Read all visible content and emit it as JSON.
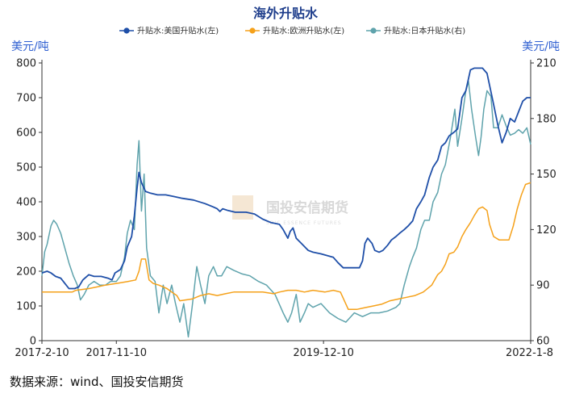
{
  "chart_data": {
    "type": "line",
    "title": "海外升贴水",
    "units": {
      "left": "美元/吨",
      "right": "美元/吨"
    },
    "y_left": {
      "min": 0,
      "max": 800,
      "ticks": [
        0,
        100,
        200,
        300,
        400,
        500,
        600,
        700,
        800
      ]
    },
    "y_right": {
      "min": 60,
      "max": 210,
      "ticks": [
        60,
        90,
        120,
        150,
        180,
        210
      ]
    },
    "x_axis": {
      "type": "date",
      "min": "2017-02-10",
      "max": "2022-01-08",
      "tick_labels": [
        "2017-2-10",
        "2017-11-10",
        "2019-12-10",
        "2022-1-8"
      ],
      "tick_dates": [
        "2017-02-10",
        "2017-11-10",
        "2019-12-10",
        "2022-01-08"
      ]
    },
    "legend_position": "top",
    "grid": false,
    "colors": {
      "us": "#1f4fa8",
      "eu": "#f5a11a",
      "jp": "#5fa3ac",
      "title": "#1f3e8c",
      "unit": "#2e5fd1"
    },
    "series": [
      {
        "name": "升贴水:美国升贴水(左)",
        "axis": "left",
        "key": "us",
        "points": [
          [
            "2017-02-10",
            195
          ],
          [
            "2017-03-01",
            200
          ],
          [
            "2017-03-15",
            195
          ],
          [
            "2017-04-01",
            185
          ],
          [
            "2017-04-20",
            180
          ],
          [
            "2017-05-05",
            165
          ],
          [
            "2017-05-20",
            150
          ],
          [
            "2017-06-10",
            150
          ],
          [
            "2017-06-25",
            155
          ],
          [
            "2017-07-10",
            175
          ],
          [
            "2017-08-01",
            190
          ],
          [
            "2017-08-20",
            185
          ],
          [
            "2017-09-15",
            185
          ],
          [
            "2017-10-10",
            180
          ],
          [
            "2017-10-25",
            175
          ],
          [
            "2017-11-05",
            195
          ],
          [
            "2017-11-15",
            200
          ],
          [
            "2017-11-25",
            205
          ],
          [
            "2017-12-10",
            230
          ],
          [
            "2017-12-20",
            270
          ],
          [
            "2018-01-05",
            300
          ],
          [
            "2018-01-15",
            360
          ],
          [
            "2018-01-25",
            440
          ],
          [
            "2018-02-01",
            485
          ],
          [
            "2018-02-10",
            455
          ],
          [
            "2018-02-25",
            430
          ],
          [
            "2018-03-15",
            425
          ],
          [
            "2018-04-10",
            420
          ],
          [
            "2018-05-10",
            420
          ],
          [
            "2018-06-10",
            415
          ],
          [
            "2018-07-10",
            410
          ],
          [
            "2018-08-20",
            405
          ],
          [
            "2018-10-01",
            395
          ],
          [
            "2018-11-01",
            385
          ],
          [
            "2018-11-15",
            380
          ],
          [
            "2018-11-25",
            372
          ],
          [
            "2018-12-05",
            380
          ],
          [
            "2018-12-25",
            375
          ],
          [
            "2019-01-20",
            370
          ],
          [
            "2019-03-01",
            370
          ],
          [
            "2019-04-01",
            365
          ],
          [
            "2019-05-01",
            350
          ],
          [
            "2019-06-01",
            340
          ],
          [
            "2019-07-01",
            335
          ],
          [
            "2019-07-15",
            320
          ],
          [
            "2019-08-01",
            295
          ],
          [
            "2019-08-10",
            315
          ],
          [
            "2019-08-20",
            325
          ],
          [
            "2019-09-01",
            295
          ],
          [
            "2019-09-20",
            280
          ],
          [
            "2019-10-15",
            260
          ],
          [
            "2019-11-01",
            255
          ],
          [
            "2019-12-01",
            250
          ],
          [
            "2020-01-15",
            240
          ],
          [
            "2020-02-01",
            225
          ],
          [
            "2020-02-20",
            210
          ],
          [
            "2020-03-20",
            210
          ],
          [
            "2020-04-20",
            210
          ],
          [
            "2020-05-01",
            230
          ],
          [
            "2020-05-10",
            280
          ],
          [
            "2020-05-20",
            295
          ],
          [
            "2020-06-05",
            280
          ],
          [
            "2020-06-15",
            260
          ],
          [
            "2020-07-01",
            255
          ],
          [
            "2020-07-15",
            260
          ],
          [
            "2020-08-01",
            275
          ],
          [
            "2020-08-15",
            290
          ],
          [
            "2020-09-01",
            300
          ],
          [
            "2020-09-15",
            310
          ],
          [
            "2020-10-01",
            320
          ],
          [
            "2020-10-15",
            330
          ],
          [
            "2020-11-01",
            345
          ],
          [
            "2020-11-15",
            380
          ],
          [
            "2020-12-01",
            400
          ],
          [
            "2020-12-15",
            420
          ],
          [
            "2021-01-01",
            470
          ],
          [
            "2021-01-15",
            500
          ],
          [
            "2021-02-01",
            520
          ],
          [
            "2021-02-15",
            560
          ],
          [
            "2021-03-01",
            570
          ],
          [
            "2021-03-15",
            590
          ],
          [
            "2021-04-01",
            600
          ],
          [
            "2021-04-15",
            610
          ],
          [
            "2021-05-01",
            700
          ],
          [
            "2021-05-15",
            720
          ],
          [
            "2021-06-01",
            780
          ],
          [
            "2021-06-15",
            785
          ],
          [
            "2021-07-15",
            785
          ],
          [
            "2021-08-01",
            770
          ],
          [
            "2021-08-20",
            700
          ],
          [
            "2021-09-10",
            620
          ],
          [
            "2021-09-25",
            570
          ],
          [
            "2021-10-10",
            600
          ],
          [
            "2021-10-25",
            640
          ],
          [
            "2021-11-10",
            630
          ],
          [
            "2021-11-25",
            660
          ],
          [
            "2021-12-10",
            690
          ],
          [
            "2021-12-25",
            700
          ],
          [
            "2022-01-08",
            700
          ]
        ]
      },
      {
        "name": "升贴水:欧洲升贴水(左)",
        "axis": "left",
        "key": "eu",
        "points": [
          [
            "2017-02-10",
            140
          ],
          [
            "2017-06-01",
            140
          ],
          [
            "2017-06-15",
            145
          ],
          [
            "2017-08-01",
            150
          ],
          [
            "2017-09-01",
            155
          ],
          [
            "2017-10-01",
            160
          ],
          [
            "2017-11-10",
            165
          ],
          [
            "2017-12-20",
            170
          ],
          [
            "2018-01-20",
            175
          ],
          [
            "2018-02-01",
            200
          ],
          [
            "2018-02-10",
            235
          ],
          [
            "2018-02-25",
            235
          ],
          [
            "2018-03-10",
            175
          ],
          [
            "2018-03-25",
            165
          ],
          [
            "2018-04-15",
            160
          ],
          [
            "2018-05-15",
            150
          ],
          [
            "2018-06-01",
            140
          ],
          [
            "2018-06-20",
            130
          ],
          [
            "2018-07-01",
            115
          ],
          [
            "2018-08-15",
            120
          ],
          [
            "2018-09-15",
            130
          ],
          [
            "2018-10-15",
            135
          ],
          [
            "2018-11-15",
            130
          ],
          [
            "2018-12-15",
            135
          ],
          [
            "2019-01-15",
            140
          ],
          [
            "2019-03-01",
            140
          ],
          [
            "2019-05-01",
            140
          ],
          [
            "2019-06-10",
            135
          ],
          [
            "2019-07-01",
            140
          ],
          [
            "2019-08-01",
            145
          ],
          [
            "2019-09-01",
            145
          ],
          [
            "2019-10-01",
            140
          ],
          [
            "2019-11-01",
            145
          ],
          [
            "2019-12-15",
            140
          ],
          [
            "2020-01-15",
            145
          ],
          [
            "2020-02-10",
            140
          ],
          [
            "2020-03-10",
            90
          ],
          [
            "2020-04-10",
            90
          ],
          [
            "2020-05-10",
            95
          ],
          [
            "2020-06-10",
            100
          ],
          [
            "2020-07-10",
            105
          ],
          [
            "2020-08-10",
            115
          ],
          [
            "2020-09-10",
            120
          ],
          [
            "2020-10-10",
            125
          ],
          [
            "2020-11-10",
            130
          ],
          [
            "2020-12-10",
            140
          ],
          [
            "2021-01-10",
            160
          ],
          [
            "2021-02-01",
            190
          ],
          [
            "2021-02-15",
            200
          ],
          [
            "2021-03-01",
            220
          ],
          [
            "2021-03-15",
            250
          ],
          [
            "2021-04-01",
            255
          ],
          [
            "2021-04-15",
            270
          ],
          [
            "2021-05-01",
            300
          ],
          [
            "2021-05-15",
            320
          ],
          [
            "2021-06-01",
            340
          ],
          [
            "2021-06-15",
            360
          ],
          [
            "2021-07-01",
            380
          ],
          [
            "2021-07-15",
            385
          ],
          [
            "2021-08-01",
            375
          ],
          [
            "2021-08-10",
            335
          ],
          [
            "2021-08-25",
            300
          ],
          [
            "2021-09-15",
            290
          ],
          [
            "2021-10-20",
            290
          ],
          [
            "2021-11-05",
            330
          ],
          [
            "2021-11-20",
            380
          ],
          [
            "2021-12-05",
            420
          ],
          [
            "2021-12-20",
            450
          ],
          [
            "2022-01-08",
            455
          ]
        ]
      },
      {
        "name": "升贴水:日本升贴水(右)",
        "axis": "right",
        "key": "jp",
        "points": [
          [
            "2017-02-10",
            95
          ],
          [
            "2017-02-20",
            108
          ],
          [
            "2017-03-01",
            112
          ],
          [
            "2017-03-15",
            122
          ],
          [
            "2017-03-25",
            125
          ],
          [
            "2017-04-05",
            123
          ],
          [
            "2017-04-20",
            118
          ],
          [
            "2017-05-05",
            110
          ],
          [
            "2017-05-20",
            102
          ],
          [
            "2017-06-05",
            95
          ],
          [
            "2017-06-20",
            90
          ],
          [
            "2017-07-01",
            82
          ],
          [
            "2017-07-15",
            85
          ],
          [
            "2017-08-01",
            90
          ],
          [
            "2017-08-20",
            92
          ],
          [
            "2017-09-10",
            90
          ],
          [
            "2017-10-01",
            90
          ],
          [
            "2017-10-20",
            92
          ],
          [
            "2017-11-10",
            92
          ],
          [
            "2017-11-25",
            95
          ],
          [
            "2017-12-10",
            105
          ],
          [
            "2017-12-20",
            118
          ],
          [
            "2018-01-01",
            125
          ],
          [
            "2018-01-15",
            120
          ],
          [
            "2018-01-25",
            155
          ],
          [
            "2018-02-01",
            168
          ],
          [
            "2018-02-10",
            130
          ],
          [
            "2018-02-20",
            150
          ],
          [
            "2018-03-01",
            110
          ],
          [
            "2018-03-15",
            95
          ],
          [
            "2018-04-01",
            92
          ],
          [
            "2018-04-15",
            75
          ],
          [
            "2018-05-01",
            90
          ],
          [
            "2018-05-15",
            80
          ],
          [
            "2018-06-01",
            90
          ],
          [
            "2018-06-15",
            80
          ],
          [
            "2018-07-01",
            70
          ],
          [
            "2018-07-15",
            80
          ],
          [
            "2018-08-01",
            62
          ],
          [
            "2018-08-15",
            78
          ],
          [
            "2018-09-01",
            100
          ],
          [
            "2018-09-15",
            90
          ],
          [
            "2018-10-01",
            80
          ],
          [
            "2018-10-15",
            95
          ],
          [
            "2018-11-01",
            100
          ],
          [
            "2018-11-15",
            95
          ],
          [
            "2018-12-01",
            95
          ],
          [
            "2018-12-20",
            100
          ],
          [
            "2019-01-15",
            98
          ],
          [
            "2019-02-15",
            96
          ],
          [
            "2019-03-15",
            95
          ],
          [
            "2019-04-15",
            92
          ],
          [
            "2019-05-15",
            90
          ],
          [
            "2019-06-15",
            85
          ],
          [
            "2019-07-15",
            75
          ],
          [
            "2019-08-01",
            70
          ],
          [
            "2019-08-15",
            75
          ],
          [
            "2019-09-01",
            85
          ],
          [
            "2019-09-15",
            70
          ],
          [
            "2019-10-01",
            75
          ],
          [
            "2019-10-15",
            80
          ],
          [
            "2019-11-01",
            78
          ],
          [
            "2019-12-01",
            80
          ],
          [
            "2020-01-01",
            75
          ],
          [
            "2020-02-01",
            72
          ],
          [
            "2020-03-01",
            70
          ],
          [
            "2020-04-01",
            75
          ],
          [
            "2020-05-01",
            73
          ],
          [
            "2020-06-01",
            75
          ],
          [
            "2020-07-01",
            75
          ],
          [
            "2020-08-01",
            76
          ],
          [
            "2020-09-01",
            78
          ],
          [
            "2020-09-15",
            80
          ],
          [
            "2020-10-01",
            90
          ],
          [
            "2020-10-20",
            100
          ],
          [
            "2020-11-01",
            105
          ],
          [
            "2020-11-15",
            110
          ],
          [
            "2020-12-01",
            120
          ],
          [
            "2020-12-15",
            125
          ],
          [
            "2021-01-01",
            125
          ],
          [
            "2021-01-15",
            135
          ],
          [
            "2021-02-01",
            140
          ],
          [
            "2021-02-15",
            150
          ],
          [
            "2021-03-01",
            155
          ],
          [
            "2021-03-20",
            170
          ],
          [
            "2021-04-05",
            185
          ],
          [
            "2021-04-15",
            165
          ],
          [
            "2021-05-01",
            180
          ],
          [
            "2021-05-15",
            195
          ],
          [
            "2021-05-25",
            200
          ],
          [
            "2021-06-05",
            185
          ],
          [
            "2021-06-20",
            170
          ],
          [
            "2021-07-01",
            160
          ],
          [
            "2021-07-10",
            170
          ],
          [
            "2021-07-20",
            185
          ],
          [
            "2021-08-01",
            195
          ],
          [
            "2021-08-15",
            192
          ],
          [
            "2021-08-25",
            175
          ],
          [
            "2021-09-10",
            175
          ],
          [
            "2021-09-25",
            182
          ],
          [
            "2021-10-10",
            176
          ],
          [
            "2021-10-25",
            171
          ],
          [
            "2021-11-10",
            172
          ],
          [
            "2021-11-25",
            174
          ],
          [
            "2021-12-10",
            172
          ],
          [
            "2021-12-25",
            175
          ],
          [
            "2022-01-08",
            166
          ]
        ]
      }
    ],
    "watermark": {
      "cn": "国投安信期货",
      "en": "SDIC ESSENCE FUTURES"
    }
  },
  "footer": {
    "source": "数据来源：wind、国投安信期货"
  }
}
